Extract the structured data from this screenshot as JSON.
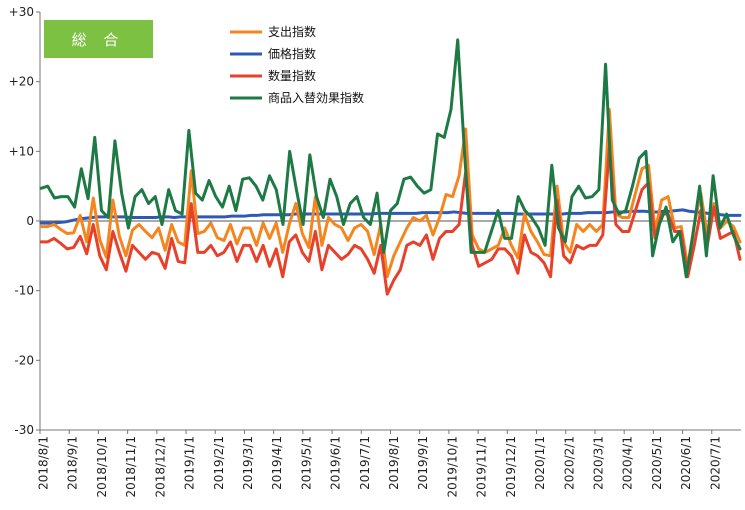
{
  "chart_data": {
    "type": "line",
    "badge": "総 合",
    "title": "",
    "xlabel": "",
    "ylabel": "",
    "ylim": [
      -30,
      30
    ],
    "yticks": [
      "+30",
      "+20",
      "+10",
      "0",
      "-10",
      "-20",
      "-30"
    ],
    "ytick_values": [
      30,
      20,
      10,
      0,
      -10,
      -20,
      -30
    ],
    "x_tick_labels": [
      "2018/8/1",
      "2018/9/1",
      "2018/10/1",
      "2018/11/1",
      "2018/12/1",
      "2019/1/1",
      "2019/2/1",
      "2019/3/1",
      "2019/4/1",
      "2019/5/1",
      "2019/6/1",
      "2019/7/1",
      "2019/8/1",
      "2019/9/1",
      "2019/10/1",
      "2019/11/1",
      "2019/12/1",
      "2020/1/1",
      "2020/2/1",
      "2020/3/1",
      "2020/4/1",
      "2020/5/1",
      "2020/6/1",
      "2020/7/1"
    ],
    "legend_position": "top-center",
    "grid": false,
    "colors": {
      "支出指数": "#F5861F",
      "価格指数": "#2E59B8",
      "数量指数": "#E8412B",
      "商品入替効果指数": "#1E7A45",
      "badge": "#7DC142"
    },
    "series": [
      {
        "name": "支出指数",
        "values": [
          -0.8,
          -0.8,
          -0.5,
          -1.2,
          -1.8,
          -1.7,
          0.8,
          -3.0,
          3.3,
          -2.7,
          -5.2,
          3.0,
          -2.2,
          -5.0,
          -1.3,
          -0.5,
          -1.5,
          -2.4,
          -1.0,
          -4.2,
          -0.5,
          -3.0,
          -3.5,
          7.2,
          -1.8,
          -1.5,
          -0.3,
          -2.4,
          -2.8,
          -0.5,
          -3.3,
          -1.0,
          -1.0,
          -3.5,
          -0.3,
          -2.5,
          -0.3,
          -4.5,
          -0.5,
          2.5,
          -1.8,
          -3.8,
          3.5,
          -3.5,
          0.5,
          -0.5,
          -1.0,
          -2.8,
          -1.0,
          -0.5,
          -1.5,
          -4.8,
          -0.5,
          -8.0,
          -5.0,
          -3.0,
          -1.0,
          0.5,
          0.0,
          0.8,
          -2.0,
          0.5,
          3.8,
          3.5,
          6.5,
          13.2,
          -2.0,
          -4.0,
          -4.5,
          -4.0,
          -3.5,
          -1.0,
          -3.5,
          -5.3,
          1.0,
          -1.5,
          -3.0,
          -4.8,
          -5.0,
          5.0,
          -3.0,
          -4.5,
          -0.5,
          -1.5,
          -0.5,
          -1.5,
          -0.5,
          16.0,
          1.0,
          0.5,
          0.5,
          4.0,
          7.5,
          8.0,
          -1.5,
          3.0,
          3.5,
          -1.0,
          -0.8,
          -6.5,
          -0.5,
          4.0,
          -2.0,
          2.5,
          -1.0,
          0.0,
          -0.8,
          -3.0
        ]
      },
      {
        "name": "価格指数",
        "values": [
          -0.3,
          -0.3,
          -0.3,
          -0.2,
          -0.1,
          0.1,
          0.3,
          0.4,
          0.5,
          0.6,
          0.6,
          0.6,
          0.6,
          0.6,
          0.5,
          0.5,
          0.5,
          0.5,
          0.5,
          0.6,
          0.6,
          0.5,
          0.6,
          0.6,
          0.6,
          0.6,
          0.6,
          0.6,
          0.6,
          0.6,
          0.7,
          0.7,
          0.7,
          0.8,
          0.8,
          0.9,
          0.9,
          0.9,
          0.9,
          0.9,
          1.0,
          1.0,
          1.0,
          1.0,
          1.0,
          1.0,
          1.0,
          1.0,
          1.0,
          1.0,
          1.0,
          1.0,
          1.0,
          1.1,
          1.1,
          1.1,
          1.1,
          1.1,
          1.1,
          1.1,
          1.2,
          1.2,
          1.2,
          1.2,
          1.2,
          1.3,
          1.2,
          1.1,
          1.1,
          1.1,
          1.1,
          1.1,
          1.1,
          1.1,
          1.1,
          1.0,
          1.0,
          1.0,
          1.0,
          1.0,
          1.0,
          1.0,
          1.0,
          1.1,
          1.1,
          1.1,
          1.2,
          1.2,
          1.2,
          1.2,
          1.3,
          1.3,
          1.3,
          1.4,
          1.4,
          1.4,
          1.3,
          1.3,
          1.4,
          1.4,
          1.5,
          1.6,
          1.4,
          1.3,
          1.2,
          1.1,
          1.0,
          0.9,
          0.8,
          0.8,
          0.8
        ]
      },
      {
        "name": "数量指数",
        "values": [
          -3.0,
          -3.0,
          -2.5,
          -3.2,
          -4.0,
          -3.8,
          -2.2,
          -4.7,
          -0.5,
          -5.0,
          -7.0,
          -1.5,
          -4.5,
          -7.2,
          -3.5,
          -4.5,
          -5.5,
          -4.5,
          -4.8,
          -6.8,
          -2.5,
          -5.8,
          -6.0,
          2.5,
          -4.5,
          -4.5,
          -3.5,
          -5.0,
          -4.5,
          -3.0,
          -5.8,
          -3.5,
          -3.5,
          -5.8,
          -3.5,
          -6.5,
          -4.0,
          -8.0,
          -3.0,
          -2.0,
          -4.5,
          -5.8,
          -1.5,
          -7.0,
          -3.5,
          -4.5,
          -5.5,
          -4.8,
          -3.5,
          -4.0,
          -5.5,
          -7.5,
          -3.5,
          -10.5,
          -8.5,
          -7.0,
          -3.5,
          -3.0,
          -3.5,
          -2.0,
          -5.5,
          -2.5,
          -1.5,
          -1.5,
          -0.5,
          7.0,
          -3.5,
          -6.5,
          -6.0,
          -5.5,
          -4.0,
          -4.0,
          -5.0,
          -7.5,
          -2.0,
          -4.5,
          -5.0,
          -6.0,
          -8.0,
          3.0,
          -5.0,
          -6.0,
          -3.5,
          -4.0,
          -3.5,
          -3.5,
          -2.0,
          10.5,
          -0.5,
          -1.5,
          -1.5,
          1.5,
          4.5,
          5.5,
          -2.5,
          1.0,
          1.0,
          -1.5,
          -1.5,
          -8.0,
          -3.5,
          1.5,
          -3.5,
          2.0,
          -2.5,
          -2.0,
          -1.5,
          -5.5
        ]
      },
      {
        "name": "商品入替効果指数",
        "values": [
          4.7,
          5.0,
          3.3,
          3.5,
          3.5,
          2.0,
          7.5,
          3.2,
          12.0,
          1.5,
          0.5,
          11.5,
          4.0,
          -1.0,
          3.5,
          4.5,
          2.5,
          3.5,
          -0.5,
          4.5,
          1.5,
          1.0,
          13.0,
          4.0,
          3.0,
          5.8,
          3.5,
          2.0,
          5.0,
          1.5,
          6.0,
          6.2,
          5.0,
          3.0,
          6.5,
          4.5,
          -0.5,
          10.0,
          4.5,
          -0.5,
          9.5,
          3.5,
          0.5,
          6.0,
          3.5,
          -0.5,
          2.5,
          3.5,
          0.5,
          -0.5,
          4.0,
          -4.5,
          1.5,
          2.5,
          6.0,
          6.3,
          5.0,
          4.0,
          4.5,
          12.5,
          12.0,
          16.0,
          26.0,
          10.0,
          -4.5,
          -4.5,
          -4.5,
          -1.5,
          1.5,
          -2.5,
          -2.5,
          3.5,
          1.5,
          0.5,
          -1.0,
          -3.5,
          8.0,
          -1.0,
          -3.0,
          3.5,
          5.0,
          3.3,
          3.5,
          4.5,
          22.5,
          3.0,
          1.0,
          1.5,
          5.0,
          9.0,
          10.0,
          -5.0,
          -0.5,
          2.0,
          -3.0,
          -1.5,
          -8.0,
          -2.0,
          5.0,
          -5.0,
          6.5,
          -1.0,
          1.0,
          -2.0,
          -4.0
        ]
      }
    ]
  }
}
